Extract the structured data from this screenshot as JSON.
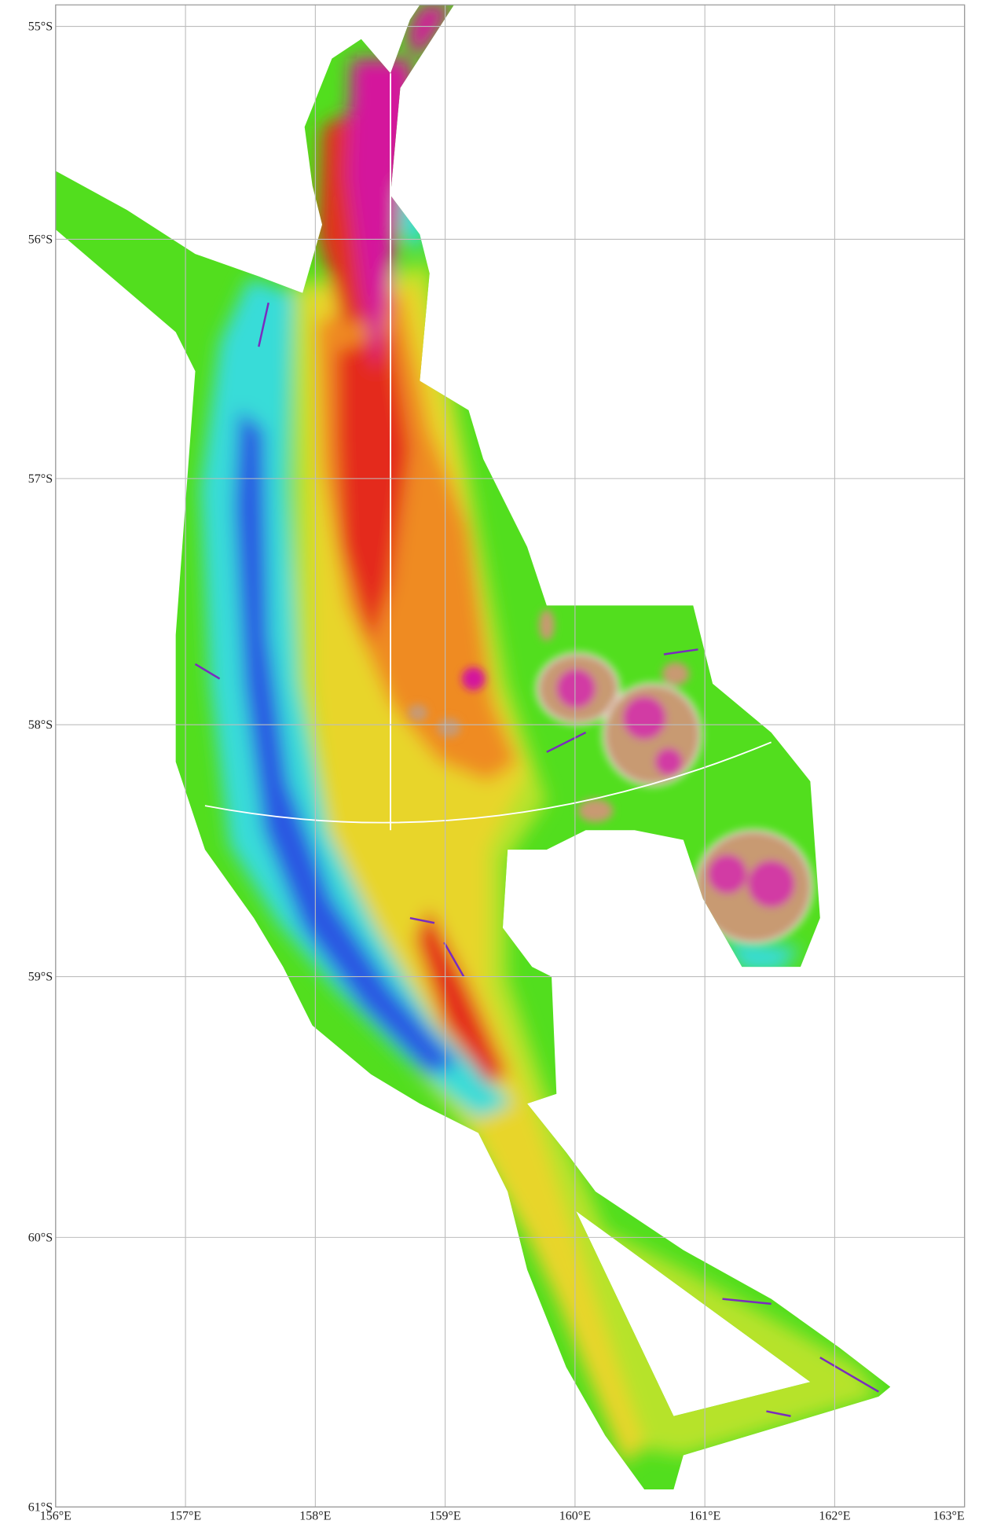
{
  "map": {
    "lat_labels": [
      "55°S",
      "56°S",
      "57°S",
      "58°S",
      "59°S",
      "60°S",
      "61°S"
    ],
    "lon_labels": [
      "156°E",
      "157°E",
      "158°E",
      "159°E",
      "160°E",
      "161°E",
      "162°E",
      "163°E"
    ]
  }
}
